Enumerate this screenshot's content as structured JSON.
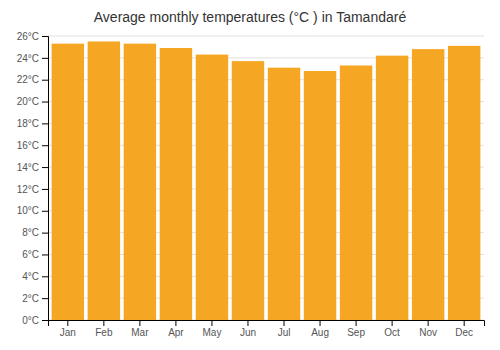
{
  "chart_data": {
    "type": "bar",
    "title": "Average monthly temperatures (°C ) in Tamandaré",
    "categories": [
      "Jan",
      "Feb",
      "Mar",
      "Apr",
      "May",
      "Jun",
      "Jul",
      "Aug",
      "Sep",
      "Oct",
      "Nov",
      "Dec"
    ],
    "values": [
      25.3,
      25.5,
      25.3,
      24.9,
      24.3,
      23.7,
      23.1,
      22.8,
      23.3,
      24.2,
      24.8,
      25.1
    ],
    "color": "#F5A623",
    "ylim": [
      0,
      26
    ],
    "yticks": [
      {
        "value": 0,
        "label": "0°C"
      },
      {
        "value": 2,
        "label": "2°C"
      },
      {
        "value": 4,
        "label": "4°C"
      },
      {
        "value": 6,
        "label": "6°C"
      },
      {
        "value": 8,
        "label": "8°C"
      },
      {
        "value": 10,
        "label": "10°C"
      },
      {
        "value": 12,
        "label": "12°C"
      },
      {
        "value": 14,
        "label": "14°C"
      },
      {
        "value": 16,
        "label": "16°C"
      },
      {
        "value": 18,
        "label": "18°C"
      },
      {
        "value": 20,
        "label": "20°C"
      },
      {
        "value": 22,
        "label": "22°C"
      },
      {
        "value": 24,
        "label": "24°C"
      },
      {
        "value": 26,
        "label": "26°C"
      }
    ],
    "grid": true
  }
}
